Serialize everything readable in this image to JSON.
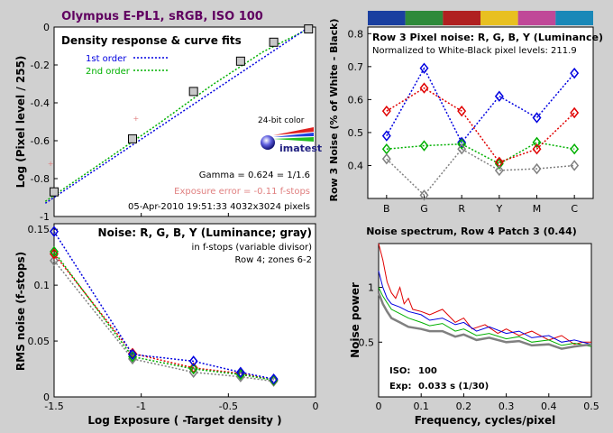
{
  "title": "Olympus E-PL1, sRGB, ISO 100",
  "colors": {
    "background": "#d0d0d0",
    "title": "#600060",
    "blue": "#0000e0",
    "green": "#00b000",
    "red": "#e00000",
    "gray": "#808080",
    "pink": "#e08080"
  },
  "logo_caption": "24-bit color",
  "logo_word": "imatest",
  "chart_data": [
    {
      "id": "density",
      "type": "scatter",
      "title": "Density response & curve fits",
      "xlabel": "",
      "ylabel": "Log (Pixel level / 255)",
      "xlim": [
        -1.5,
        0
      ],
      "ylim": [
        -1,
        0
      ],
      "xticks": [
        "-1.5",
        "-1",
        "-0.5",
        "0"
      ],
      "yticks": [
        "0",
        "-0.2",
        "-0.4",
        "-0.6",
        "-0.8",
        "-1"
      ],
      "legend": [
        {
          "label": "1st order",
          "color": "#0000e0"
        },
        {
          "label": "2nd order",
          "color": "#00b000"
        }
      ],
      "series": [
        {
          "name": "measured",
          "x": [
            -1.5,
            -1.05,
            -0.7,
            -0.43,
            -0.24,
            -0.04
          ],
          "y": [
            -0.87,
            -0.59,
            -0.34,
            -0.18,
            -0.08,
            -0.01
          ]
        },
        {
          "name": "1st order",
          "x": [
            -1.55,
            -0.02
          ],
          "y": [
            -0.93,
            0.01
          ]
        },
        {
          "name": "2nd order",
          "x": [
            -1.55,
            -1.2,
            -0.9,
            -0.6,
            -0.3,
            -0.02
          ],
          "y": [
            -0.92,
            -0.7,
            -0.51,
            -0.31,
            -0.13,
            0.0
          ]
        },
        {
          "name": "outliers",
          "x": [
            -1.52,
            -1.03
          ],
          "y": [
            -0.72,
            -0.48
          ]
        }
      ],
      "annotations": [
        "Gamma = 0.624 = 1/1.6",
        "Exposure error = -0.11 f-stops",
        "05-Apr-2010 19:51:33   4032x3024 pixels"
      ]
    },
    {
      "id": "pixel_noise",
      "type": "line",
      "title": "Row 3 Pixel noise: R, G, B, Y (Luminance)",
      "subtitle": "Normalized to White-Black pixel levels: 211.9",
      "ylabel": "Row 3 Noise (% of White - Black)",
      "categories": [
        "B",
        "G",
        "R",
        "Y",
        "M",
        "C"
      ],
      "ylim": [
        0.3,
        0.82
      ],
      "yticks": [
        "0.8",
        "0.7",
        "0.6",
        "0.5",
        "0.4"
      ],
      "color_bar": [
        "#1a3fa0",
        "#2e8a3a",
        "#b02020",
        "#e8c020",
        "#c04898",
        "#1a88b8"
      ],
      "series": [
        {
          "name": "B",
          "color": "#0000e0",
          "values": [
            0.49,
            0.695,
            0.47,
            0.61,
            0.545,
            0.68
          ]
        },
        {
          "name": "G",
          "color": "#00b000",
          "values": [
            0.45,
            0.46,
            0.465,
            0.405,
            0.47,
            0.45
          ]
        },
        {
          "name": "R",
          "color": "#e00000",
          "values": [
            0.565,
            0.635,
            0.565,
            0.41,
            0.45,
            0.56
          ]
        },
        {
          "name": "Y",
          "color": "#808080",
          "values": [
            0.42,
            0.31,
            0.45,
            0.385,
            0.39,
            0.4
          ]
        }
      ]
    },
    {
      "id": "rms_noise",
      "type": "line",
      "title": "Noise: R, G, B, Y (Luminance; gray)",
      "subtitle": "in f-stops (variable divisor)",
      "note": "Row 4; zones 6-2",
      "xlabel": "Log Exposure ( -Target density )",
      "ylabel": "RMS noise (f-stops)",
      "xlim": [
        -1.5,
        0
      ],
      "ylim": [
        0,
        0.155
      ],
      "xticks": [
        "-1.5",
        "-1",
        "-0.5",
        "0"
      ],
      "yticks": [
        "0.15",
        "0.1",
        "0.05",
        "0"
      ],
      "x": [
        -1.5,
        -1.05,
        -0.7,
        -0.43,
        -0.24
      ],
      "series": [
        {
          "name": "B",
          "color": "#0000e0",
          "values": [
            0.148,
            0.038,
            0.032,
            0.022,
            0.016
          ]
        },
        {
          "name": "G",
          "color": "#00b000",
          "values": [
            0.13,
            0.036,
            0.025,
            0.02,
            0.015
          ]
        },
        {
          "name": "R",
          "color": "#e00000",
          "values": [
            0.128,
            0.039,
            0.026,
            0.021,
            0.015
          ]
        },
        {
          "name": "Y",
          "color": "#808080",
          "values": [
            0.122,
            0.034,
            0.022,
            0.018,
            0.014
          ]
        }
      ]
    },
    {
      "id": "noise_spectrum",
      "type": "line",
      "title": "Noise spectrum, Row 4 Patch 3 (0.44)",
      "xlabel": "Frequency, cycles/pixel",
      "ylabel": "Noise power",
      "xlim": [
        0,
        0.5
      ],
      "ylim": [
        0,
        1.4
      ],
      "xticks": [
        "0",
        "0.1",
        "0.2",
        "0.3",
        "0.4",
        "0.5"
      ],
      "yticks": [
        "1",
        "0.5"
      ],
      "annotations": [
        [
          "ISO:",
          "100"
        ],
        [
          "Exp:",
          "0.033 s  (1/30)"
        ]
      ],
      "series": [
        {
          "name": "R",
          "color": "#e00000",
          "x": [
            0.0,
            0.01,
            0.02,
            0.03,
            0.04,
            0.05,
            0.06,
            0.07,
            0.08,
            0.1,
            0.12,
            0.15,
            0.18,
            0.2,
            0.22,
            0.25,
            0.28,
            0.3,
            0.33,
            0.36,
            0.4,
            0.43,
            0.46,
            0.48,
            0.5
          ],
          "values": [
            1.4,
            1.25,
            1.05,
            0.95,
            0.9,
            1.0,
            0.85,
            0.9,
            0.8,
            0.78,
            0.75,
            0.8,
            0.68,
            0.72,
            0.62,
            0.66,
            0.58,
            0.62,
            0.56,
            0.6,
            0.52,
            0.56,
            0.48,
            0.5,
            0.5
          ]
        },
        {
          "name": "B",
          "color": "#0000e0",
          "x": [
            0.0,
            0.01,
            0.02,
            0.03,
            0.05,
            0.07,
            0.1,
            0.12,
            0.15,
            0.18,
            0.2,
            0.23,
            0.26,
            0.3,
            0.33,
            0.36,
            0.4,
            0.43,
            0.46,
            0.5
          ],
          "values": [
            1.15,
            1.0,
            0.9,
            0.85,
            0.82,
            0.78,
            0.75,
            0.7,
            0.72,
            0.66,
            0.68,
            0.6,
            0.64,
            0.58,
            0.6,
            0.54,
            0.56,
            0.5,
            0.52,
            0.48
          ]
        },
        {
          "name": "G",
          "color": "#00b000",
          "x": [
            0.0,
            0.01,
            0.02,
            0.03,
            0.05,
            0.07,
            0.1,
            0.12,
            0.15,
            0.18,
            0.2,
            0.23,
            0.26,
            0.3,
            0.33,
            0.36,
            0.4,
            0.43,
            0.46,
            0.5
          ],
          "values": [
            1.0,
            0.92,
            0.86,
            0.8,
            0.76,
            0.72,
            0.68,
            0.65,
            0.67,
            0.6,
            0.62,
            0.56,
            0.58,
            0.53,
            0.55,
            0.5,
            0.52,
            0.47,
            0.49,
            0.46
          ]
        },
        {
          "name": "Y",
          "color": "#808080",
          "x": [
            0.0,
            0.01,
            0.02,
            0.03,
            0.05,
            0.07,
            0.1,
            0.12,
            0.15,
            0.18,
            0.2,
            0.23,
            0.26,
            0.3,
            0.33,
            0.36,
            0.4,
            0.43,
            0.46,
            0.5
          ],
          "values": [
            0.95,
            0.85,
            0.78,
            0.72,
            0.68,
            0.64,
            0.62,
            0.6,
            0.6,
            0.55,
            0.57,
            0.52,
            0.54,
            0.5,
            0.51,
            0.47,
            0.48,
            0.44,
            0.46,
            0.48
          ]
        }
      ]
    }
  ]
}
